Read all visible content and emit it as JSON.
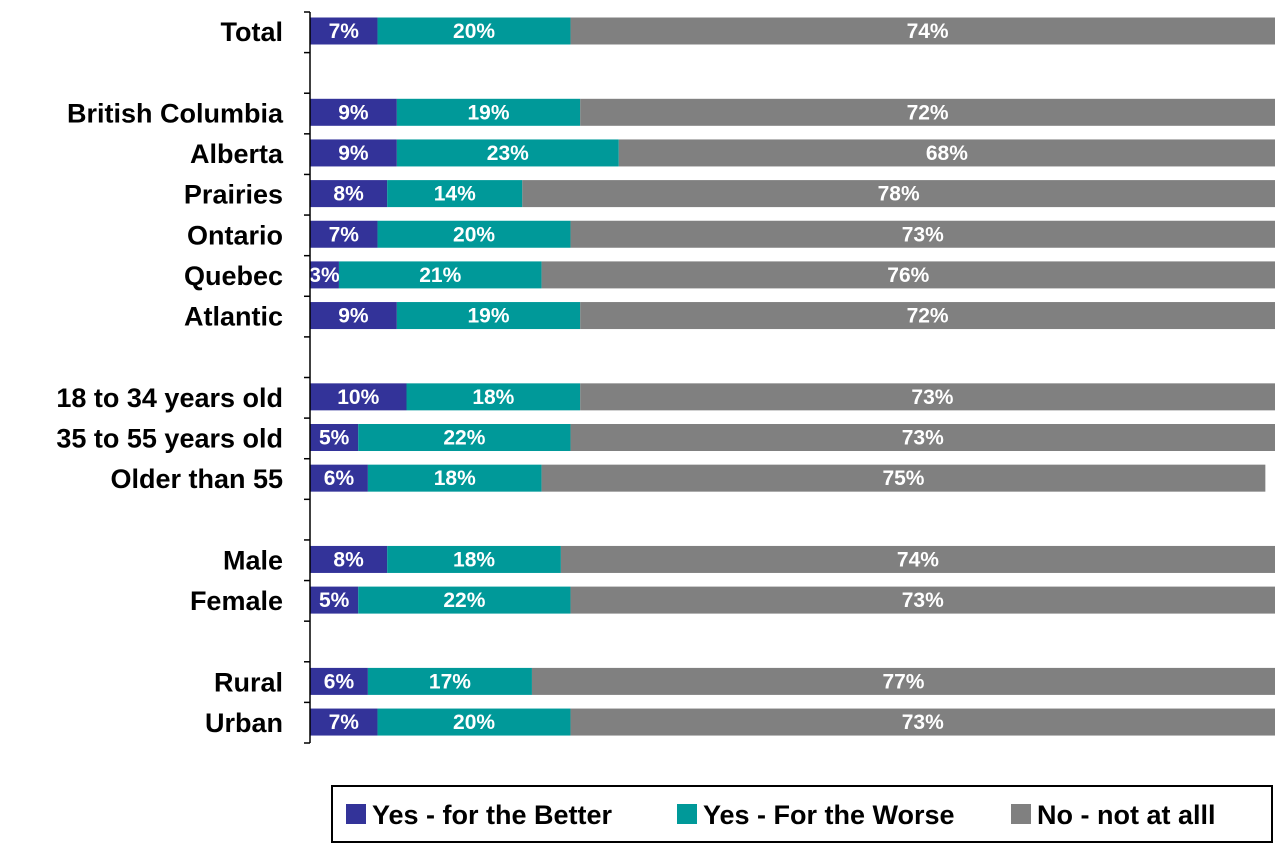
{
  "chart_data": {
    "type": "bar",
    "orientation": "horizontal",
    "stacked": true,
    "title": "",
    "xlabel": "",
    "ylabel": "",
    "xlim": [
      0,
      100
    ],
    "grid": false,
    "legend_position": "bottom-right",
    "categories": [
      "Total",
      "British Columbia",
      "Alberta",
      "Prairies",
      "Ontario",
      "Quebec",
      "Atlantic",
      "18 to 34 years old",
      "35 to 55 years old",
      "Older than 55",
      "Male",
      "Female",
      "Rural",
      "Urban"
    ],
    "row_slots": [
      0,
      2,
      3,
      4,
      5,
      6,
      7,
      9,
      10,
      11,
      13,
      14,
      16,
      17
    ],
    "series": [
      {
        "name": "Yes - for the Better",
        "color": "#333399",
        "values": [
          7,
          9,
          9,
          8,
          7,
          3,
          9,
          10,
          5,
          6,
          8,
          5,
          6,
          7
        ],
        "labels": [
          "7%",
          "9%",
          "9%",
          "8%",
          "7%",
          "3%",
          "9%",
          "10%",
          "5%",
          "6%",
          "8%",
          "5%",
          "6%",
          "7%"
        ]
      },
      {
        "name": "Yes - For the Worse",
        "color": "#009999",
        "values": [
          20,
          19,
          23,
          14,
          20,
          21,
          19,
          18,
          22,
          18,
          18,
          22,
          17,
          20
        ],
        "labels": [
          "20%",
          "19%",
          "23%",
          "14%",
          "20%",
          "21%",
          "19%",
          "18%",
          "22%",
          "18%",
          "18%",
          "22%",
          "17%",
          "20%"
        ]
      },
      {
        "name": "No - not at alll",
        "color": "#808080",
        "values": [
          74,
          72,
          68,
          78,
          73,
          76,
          72,
          73,
          73,
          75,
          74,
          73,
          77,
          73
        ],
        "labels": [
          "74%",
          "72%",
          "68%",
          "78%",
          "73%",
          "76%",
          "72%",
          "73%",
          "73%",
          "75%",
          "74%",
          "73%",
          "77%",
          "73%"
        ]
      }
    ]
  }
}
